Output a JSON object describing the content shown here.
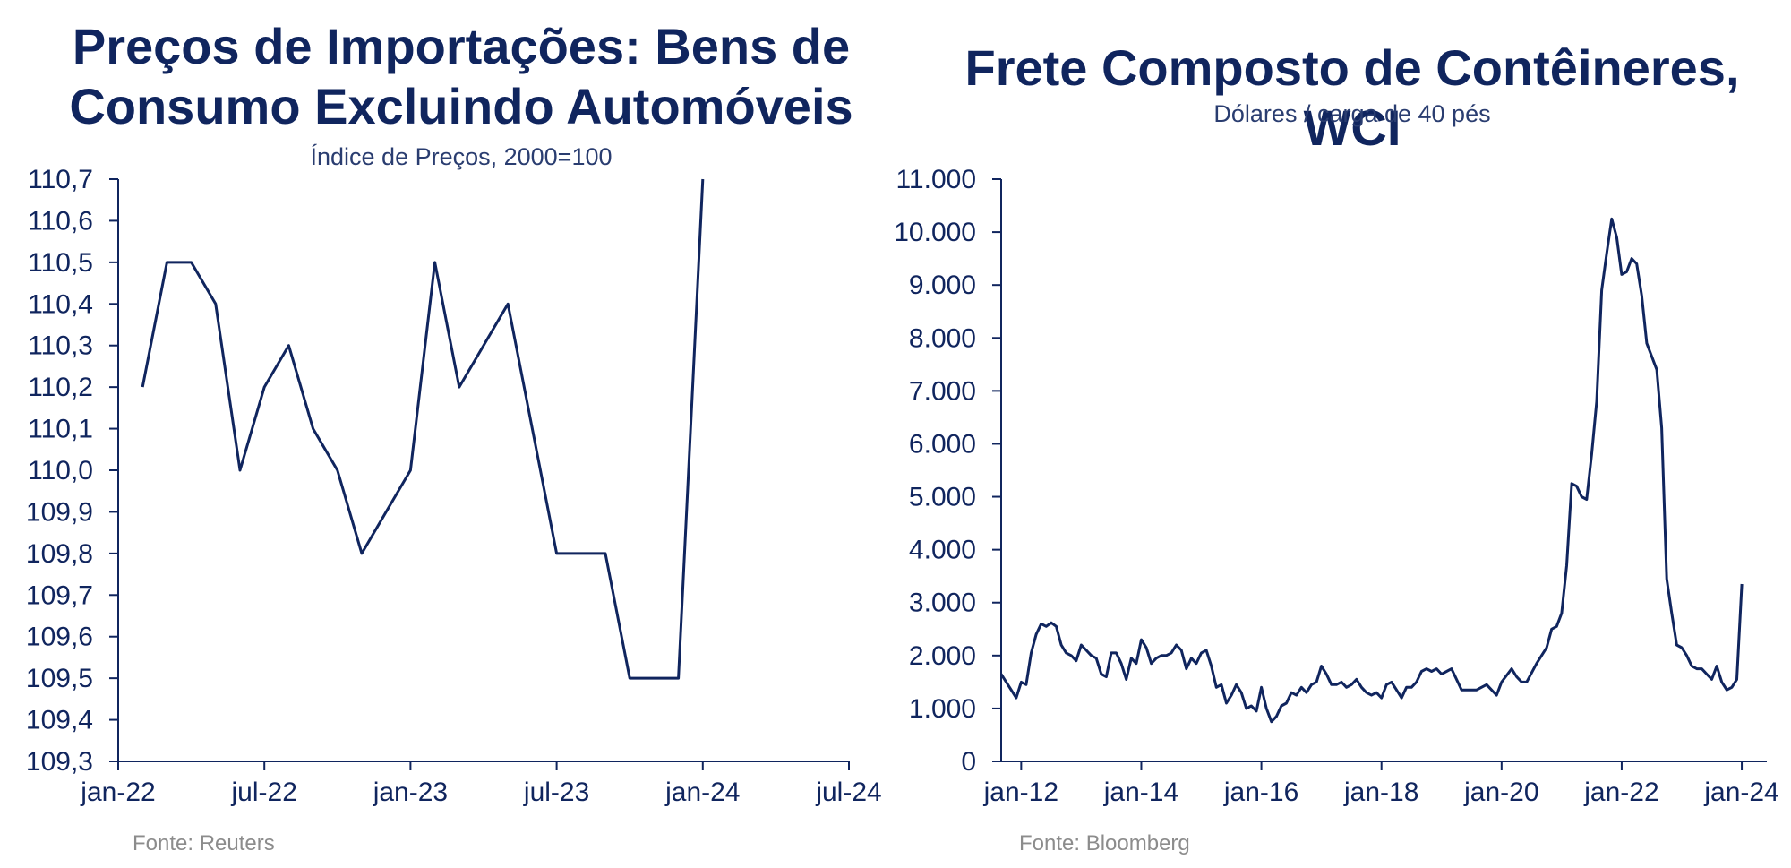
{
  "chart_data": [
    {
      "type": "line",
      "title_line1": "Preços de Importações: Bens de",
      "title_line2": "Consumo Excluindo Automóveis",
      "subtitle": "Índice de Preços, 2000=100",
      "source": "Fonte: Reuters",
      "xlabel": "",
      "ylabel": "",
      "x_ticks": [
        "jan-22",
        "jul-22",
        "jan-23",
        "jul-23",
        "jan-24",
        "jul-24"
      ],
      "y_ticks": [
        "110,7",
        "110,6",
        "110,5",
        "110,4",
        "110,3",
        "110,2",
        "110,1",
        "110,0",
        "109,9",
        "109,8",
        "109,7",
        "109,6",
        "109,5",
        "109,4",
        "109,3"
      ],
      "ylim": [
        109.3,
        110.7
      ],
      "xlim": [
        "2022-01",
        "2024-07"
      ],
      "series": [
        {
          "x": [
            "2022-02",
            "2022-03",
            "2022-04",
            "2022-05",
            "2022-06",
            "2022-07",
            "2022-08",
            "2022-09",
            "2022-10",
            "2022-11",
            "2022-12",
            "2023-01",
            "2023-02",
            "2023-03",
            "2023-04",
            "2023-05",
            "2023-06",
            "2023-07",
            "2023-08",
            "2023-09",
            "2023-10",
            "2023-11",
            "2023-12",
            "2024-01"
          ],
          "values": [
            110.2,
            110.5,
            110.5,
            110.4,
            110.0,
            110.2,
            110.3,
            110.1,
            110.0,
            109.8,
            109.9,
            110.0,
            110.5,
            110.2,
            110.3,
            110.4,
            110.1,
            109.8,
            109.8,
            109.8,
            109.5,
            109.5,
            109.5,
            110.7
          ]
        }
      ],
      "grid": false
    },
    {
      "type": "line",
      "title_line1": "Frete Composto de Contêineres, WCI",
      "subtitle": "Dólares / carga de 40 pés",
      "source": "Fonte: Bloomberg",
      "xlabel": "",
      "ylabel": "",
      "x_ticks": [
        "jan-12",
        "jan-14",
        "jan-16",
        "jan-18",
        "jan-20",
        "jan-22",
        "jan-24"
      ],
      "y_ticks": [
        "11.000",
        "10.000",
        "9.000",
        "8.000",
        "7.000",
        "6.000",
        "5.000",
        "4.000",
        "3.000",
        "2.000",
        "1.000",
        "0"
      ],
      "ylim": [
        0,
        11000
      ],
      "xlim": [
        "2011-09",
        "2024-06"
      ],
      "series": [
        {
          "x": [
            "2011-09",
            "2011-12",
            "2012-01",
            "2012-02",
            "2012-03",
            "2012-04",
            "2012-05",
            "2012-06",
            "2012-07",
            "2012-08",
            "2012-09",
            "2012-10",
            "2012-11",
            "2012-12",
            "2013-01",
            "2013-02",
            "2013-03",
            "2013-04",
            "2013-05",
            "2013-06",
            "2013-07",
            "2013-08",
            "2013-09",
            "2013-10",
            "2013-11",
            "2013-12",
            "2014-01",
            "2014-02",
            "2014-03",
            "2014-04",
            "2014-05",
            "2014-06",
            "2014-07",
            "2014-08",
            "2014-09",
            "2014-10",
            "2014-11",
            "2014-12",
            "2015-01",
            "2015-02",
            "2015-03",
            "2015-04",
            "2015-05",
            "2015-06",
            "2015-07",
            "2015-08",
            "2015-09",
            "2015-10",
            "2015-11",
            "2015-12",
            "2016-01",
            "2016-02",
            "2016-03",
            "2016-04",
            "2016-05",
            "2016-06",
            "2016-07",
            "2016-08",
            "2016-09",
            "2016-10",
            "2016-11",
            "2016-12",
            "2017-01",
            "2017-02",
            "2017-03",
            "2017-04",
            "2017-05",
            "2017-06",
            "2017-07",
            "2017-08",
            "2017-09",
            "2017-10",
            "2017-11",
            "2017-12",
            "2018-01",
            "2018-02",
            "2018-03",
            "2018-04",
            "2018-05",
            "2018-06",
            "2018-07",
            "2018-08",
            "2018-09",
            "2018-10",
            "2018-11",
            "2018-12",
            "2019-01",
            "2019-03",
            "2019-05",
            "2019-07",
            "2019-08",
            "2019-10",
            "2019-12",
            "2020-01",
            "2020-03",
            "2020-04",
            "2020-05",
            "2020-06",
            "2020-08",
            "2020-09",
            "2020-10",
            "2020-11",
            "2020-12",
            "2021-01",
            "2021-02",
            "2021-03",
            "2021-04",
            "2021-05",
            "2021-06",
            "2021-07",
            "2021-08",
            "2021-09",
            "2021-10",
            "2021-11",
            "2021-12",
            "2022-01",
            "2022-02",
            "2022-03",
            "2022-04",
            "2022-05",
            "2022-06",
            "2022-08",
            "2022-09",
            "2022-10",
            "2022-11",
            "2022-12",
            "2023-01",
            "2023-02",
            "2023-03",
            "2023-04",
            "2023-05",
            "2023-06",
            "2023-07",
            "2023-08",
            "2023-09",
            "2023-10",
            "2023-11",
            "2023-12",
            "2024-01"
          ],
          "values": [
            1650,
            1200,
            1500,
            1450,
            2050,
            2400,
            2600,
            2550,
            2620,
            2550,
            2200,
            2050,
            2000,
            1900,
            2200,
            2100,
            2000,
            1950,
            1650,
            1600,
            2050,
            2050,
            1850,
            1550,
            1950,
            1850,
            2300,
            2150,
            1850,
            1950,
            2000,
            2000,
            2050,
            2200,
            2100,
            1750,
            1950,
            1850,
            2050,
            2100,
            1800,
            1400,
            1450,
            1100,
            1250,
            1450,
            1300,
            1000,
            1050,
            950,
            1400,
            1000,
            750,
            850,
            1050,
            1100,
            1300,
            1250,
            1400,
            1300,
            1450,
            1500,
            1800,
            1650,
            1450,
            1450,
            1500,
            1400,
            1450,
            1550,
            1400,
            1300,
            1250,
            1300,
            1200,
            1450,
            1500,
            1350,
            1200,
            1400,
            1400,
            1500,
            1700,
            1750,
            1700,
            1750,
            1650,
            1750,
            1350,
            1350,
            1350,
            1450,
            1250,
            1500,
            1750,
            1600,
            1500,
            1500,
            1850,
            2000,
            2150,
            2500,
            2550,
            2800,
            3700,
            5250,
            5200,
            5000,
            4950,
            5800,
            6800,
            8900,
            9600,
            10250,
            9900,
            9200,
            9250,
            9500,
            9400,
            8800,
            7900,
            7400,
            6300,
            3450,
            2800,
            2200,
            2150,
            2000,
            1800,
            1750,
            1750,
            1650,
            1550,
            1800,
            1500,
            1350,
            1400,
            1550,
            3350
          ]
        }
      ],
      "grid": false
    }
  ]
}
